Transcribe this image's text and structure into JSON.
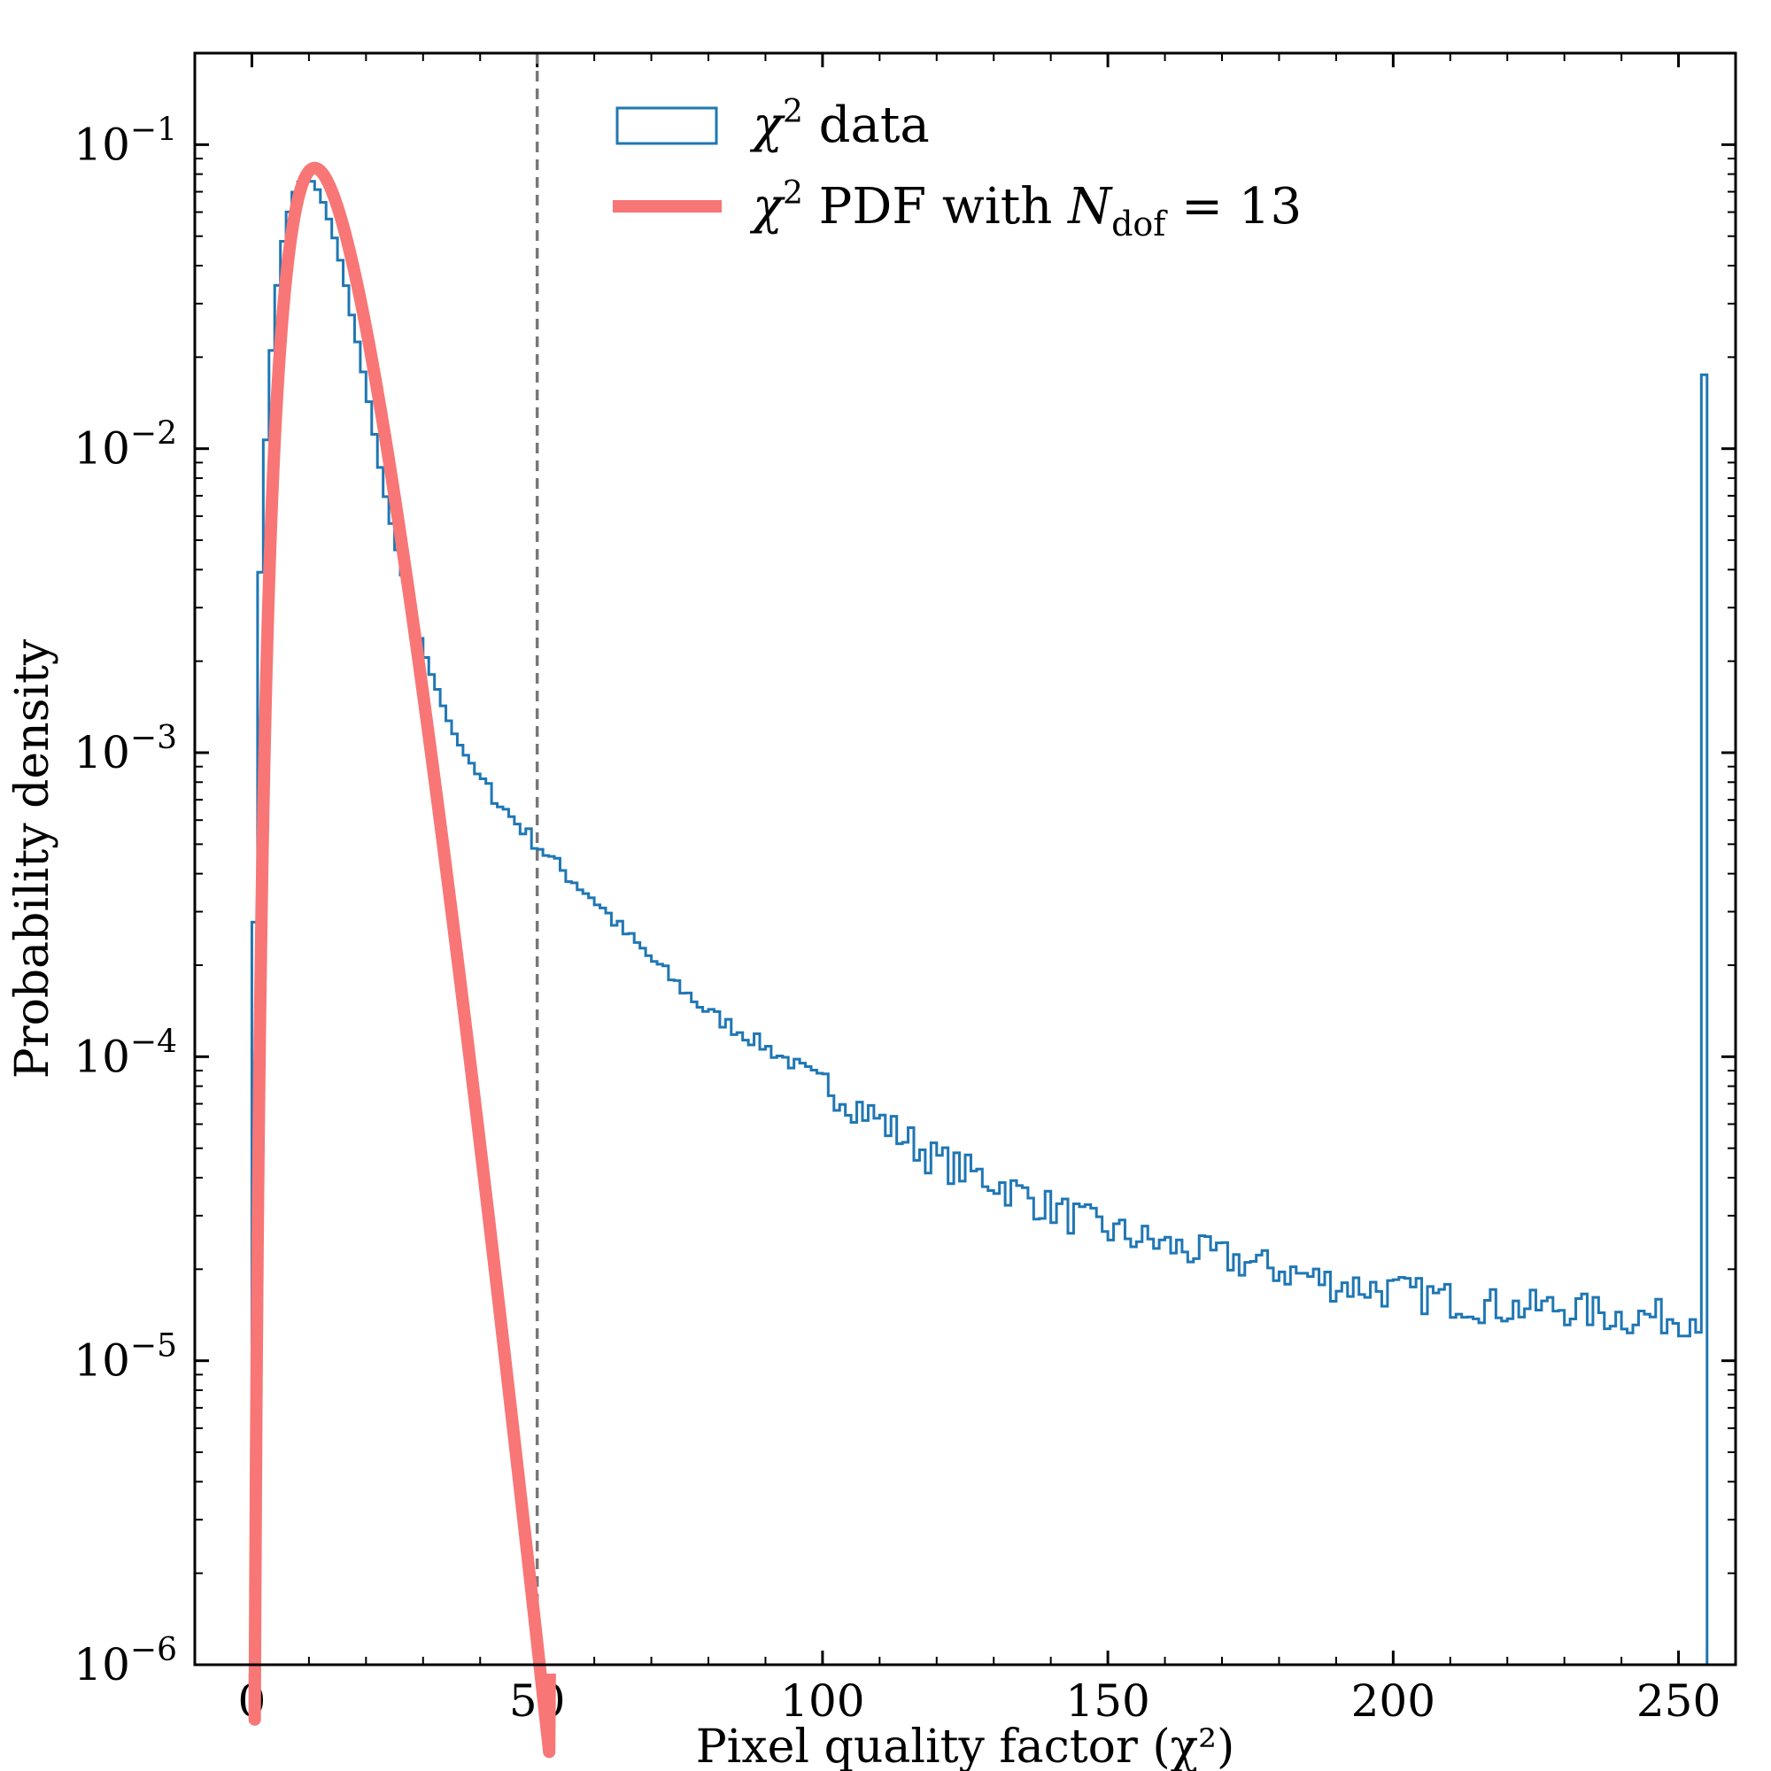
{
  "chart_data": {
    "type": "histogram",
    "xlabel": "Pixel quality factor (χ²)",
    "ylabel": "Probability density",
    "xlim": [
      -10,
      260
    ],
    "ylim": [
      1e-06,
      0.2
    ],
    "yscale": "log",
    "x_ticks": [
      0,
      50,
      100,
      150,
      200,
      250
    ],
    "x_tick_labels": [
      "0",
      "50",
      "100",
      "150",
      "200",
      "250"
    ],
    "y_ticks": [
      1e-06,
      1e-05,
      0.0001,
      0.001,
      0.01,
      0.1
    ],
    "y_tick_labels": [
      {
        "base": "10",
        "exp": "−6"
      },
      {
        "base": "10",
        "exp": "−5"
      },
      {
        "base": "10",
        "exp": "−4"
      },
      {
        "base": "10",
        "exp": "−3"
      },
      {
        "base": "10",
        "exp": "−2"
      },
      {
        "base": "10",
        "exp": "−1"
      }
    ],
    "reference_line": {
      "x": 50,
      "style": "dashed",
      "color": "#777777"
    },
    "legend": {
      "placement": "top-center",
      "entries": [
        {
          "symbol": "χ",
          "sup": "2",
          "text": " data"
        },
        {
          "symbol": "χ",
          "sup": "2",
          "text": " PDF with ",
          "italic": "N",
          "sub": "dof",
          "tail": " = 13"
        }
      ]
    },
    "series": [
      {
        "kind": "histogram-step",
        "color": "#1f77b4",
        "bin_width": 1,
        "anchors": [
          [
            0.5,
            0.00028
          ],
          [
            1,
            0.0021
          ],
          [
            2,
            0.0072
          ],
          [
            3,
            0.016
          ],
          [
            4,
            0.028
          ],
          [
            5,
            0.042
          ],
          [
            6,
            0.055
          ],
          [
            7,
            0.066
          ],
          [
            8,
            0.073
          ],
          [
            9,
            0.077
          ],
          [
            10,
            0.077
          ],
          [
            11,
            0.074
          ],
          [
            12,
            0.068
          ],
          [
            14,
            0.054
          ],
          [
            16,
            0.038
          ],
          [
            18,
            0.025
          ],
          [
            20,
            0.016
          ],
          [
            22,
            0.0098
          ],
          [
            24,
            0.0062
          ],
          [
            26,
            0.0042
          ],
          [
            28,
            0.0029
          ],
          [
            30,
            0.0022
          ],
          [
            32,
            0.0017
          ],
          [
            34,
            0.00135
          ],
          [
            36,
            0.0011
          ],
          [
            40,
            0.00082
          ],
          [
            45,
            0.00063
          ],
          [
            50,
            0.0005
          ],
          [
            55,
            0.0004
          ],
          [
            60,
            0.00033
          ],
          [
            65,
            0.00026
          ],
          [
            70,
            0.00021
          ],
          [
            75,
            0.00017
          ],
          [
            80,
            0.00014
          ],
          [
            90,
            0.000108
          ],
          [
            100,
            8.3e-05
          ],
          [
            110,
            6.2e-05
          ],
          [
            120,
            4.6e-05
          ],
          [
            130,
            3.9e-05
          ],
          [
            140,
            3.2e-05
          ],
          [
            150,
            2.7e-05
          ],
          [
            160,
            2.4e-05
          ],
          [
            170,
            2.2e-05
          ],
          [
            180,
            2e-05
          ],
          [
            190,
            1.8e-05
          ],
          [
            200,
            1.7e-05
          ],
          [
            210,
            1.6e-05
          ],
          [
            220,
            1.5e-05
          ],
          [
            230,
            1.5e-05
          ],
          [
            240,
            1.4e-05
          ],
          [
            253,
            1.4e-05
          ]
        ],
        "outlier_bin": {
          "x": 254.5,
          "value": 0.0175
        }
      },
      {
        "kind": "pdf-line",
        "color": "#f87676",
        "dof": 13
      }
    ]
  }
}
